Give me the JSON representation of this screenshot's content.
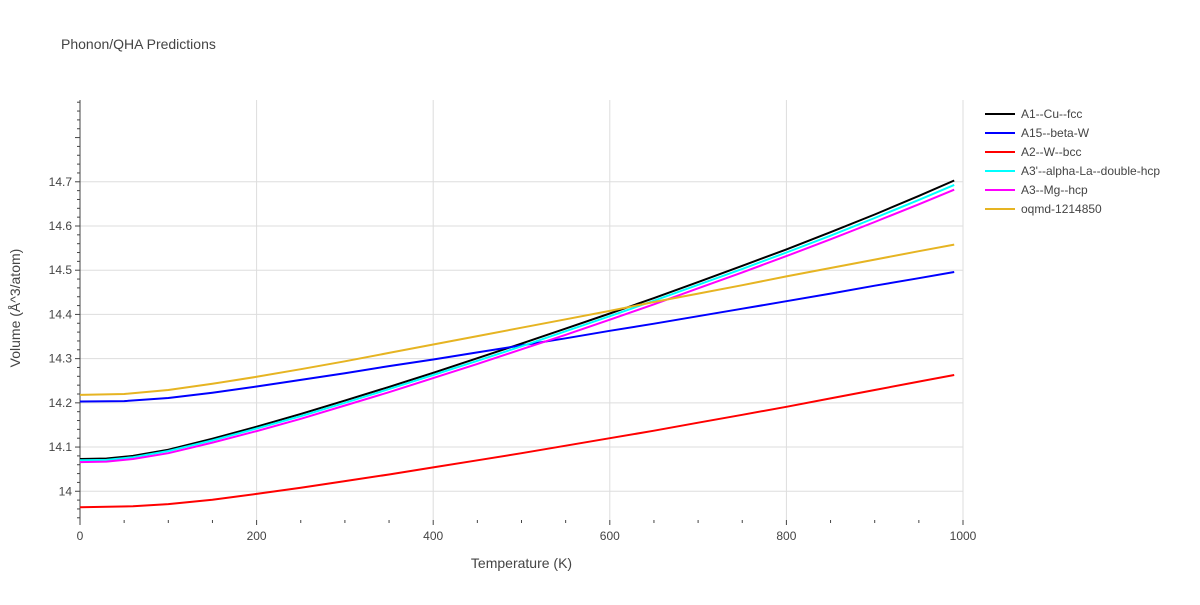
{
  "chart_data": {
    "type": "line",
    "title": "Phonon/QHA Predictions",
    "xlabel": "Temperature (K)",
    "ylabel": "Volume (Å^3/atom)",
    "xlim": [
      0,
      1000
    ],
    "ylim": [
      13.935,
      14.885
    ],
    "xticks": [
      0,
      200,
      400,
      600,
      800,
      1000
    ],
    "yticks": [
      14,
      14.1,
      14.2,
      14.3,
      14.4,
      14.5,
      14.6,
      14.7
    ],
    "ytick_labels": [
      "14",
      "14.1",
      "14.2",
      "14.3",
      "14.4",
      "14.5",
      "14.6",
      "14.7"
    ],
    "grid": true,
    "legend_position": "right",
    "series": [
      {
        "name": "A1--Cu--fcc",
        "color": "#000000",
        "x": [
          0,
          30,
          60,
          100,
          150,
          200,
          250,
          300,
          350,
          400,
          450,
          500,
          550,
          600,
          650,
          700,
          750,
          800,
          850,
          900,
          950,
          990
        ],
        "y": [
          14.073,
          14.074,
          14.08,
          14.094,
          14.119,
          14.146,
          14.175,
          14.205,
          14.236,
          14.268,
          14.301,
          14.334,
          14.368,
          14.402,
          14.437,
          14.473,
          14.51,
          14.547,
          14.586,
          14.626,
          14.668,
          14.703
        ]
      },
      {
        "name": "A15--beta-W",
        "color": "#0000ff",
        "x": [
          0,
          50,
          100,
          150,
          200,
          250,
          300,
          350,
          400,
          450,
          500,
          550,
          600,
          650,
          700,
          750,
          800,
          850,
          900,
          950,
          990
        ],
        "y": [
          14.203,
          14.204,
          14.211,
          14.223,
          14.237,
          14.252,
          14.267,
          14.283,
          14.298,
          14.314,
          14.33,
          14.346,
          14.363,
          14.379,
          14.396,
          14.413,
          14.43,
          14.447,
          14.465,
          14.482,
          14.496
        ]
      },
      {
        "name": "A2--W--bcc",
        "color": "#ff0000",
        "x": [
          0,
          60,
          100,
          150,
          200,
          250,
          300,
          350,
          400,
          450,
          500,
          550,
          600,
          650,
          700,
          750,
          800,
          850,
          900,
          950,
          990
        ],
        "y": [
          13.964,
          13.966,
          13.971,
          13.981,
          13.994,
          14.008,
          14.023,
          14.038,
          14.054,
          14.07,
          14.086,
          14.103,
          14.12,
          14.137,
          14.155,
          14.173,
          14.191,
          14.21,
          14.229,
          14.248,
          14.263
        ]
      },
      {
        "name": "A3'--alpha-La--double-hcp",
        "color": "#00ffff",
        "x": [
          0,
          30,
          60,
          100,
          150,
          200,
          250,
          300,
          350,
          400,
          450,
          500,
          550,
          600,
          650,
          700,
          750,
          800,
          850,
          900,
          950,
          990
        ],
        "y": [
          14.07,
          14.071,
          14.077,
          14.091,
          14.115,
          14.142,
          14.17,
          14.2,
          14.231,
          14.263,
          14.295,
          14.328,
          14.362,
          14.396,
          14.431,
          14.467,
          14.503,
          14.54,
          14.578,
          14.618,
          14.659,
          14.693
        ]
      },
      {
        "name": "A3--Mg--hcp",
        "color": "#ff00ff",
        "x": [
          0,
          30,
          60,
          100,
          150,
          200,
          250,
          300,
          350,
          400,
          450,
          500,
          550,
          600,
          650,
          700,
          750,
          800,
          850,
          900,
          950,
          990
        ],
        "y": [
          14.066,
          14.067,
          14.073,
          14.086,
          14.11,
          14.136,
          14.164,
          14.194,
          14.224,
          14.256,
          14.288,
          14.321,
          14.354,
          14.388,
          14.423,
          14.459,
          14.495,
          14.532,
          14.57,
          14.609,
          14.649,
          14.682
        ]
      },
      {
        "name": "oqmd-1214850",
        "color": "#e6b422",
        "x": [
          0,
          50,
          100,
          150,
          200,
          250,
          300,
          350,
          400,
          450,
          500,
          550,
          600,
          650,
          700,
          750,
          800,
          850,
          900,
          950,
          990
        ],
        "y": [
          14.218,
          14.22,
          14.229,
          14.243,
          14.259,
          14.276,
          14.294,
          14.313,
          14.332,
          14.351,
          14.37,
          14.389,
          14.408,
          14.428,
          14.447,
          14.466,
          14.486,
          14.505,
          14.524,
          14.543,
          14.558
        ]
      }
    ]
  }
}
